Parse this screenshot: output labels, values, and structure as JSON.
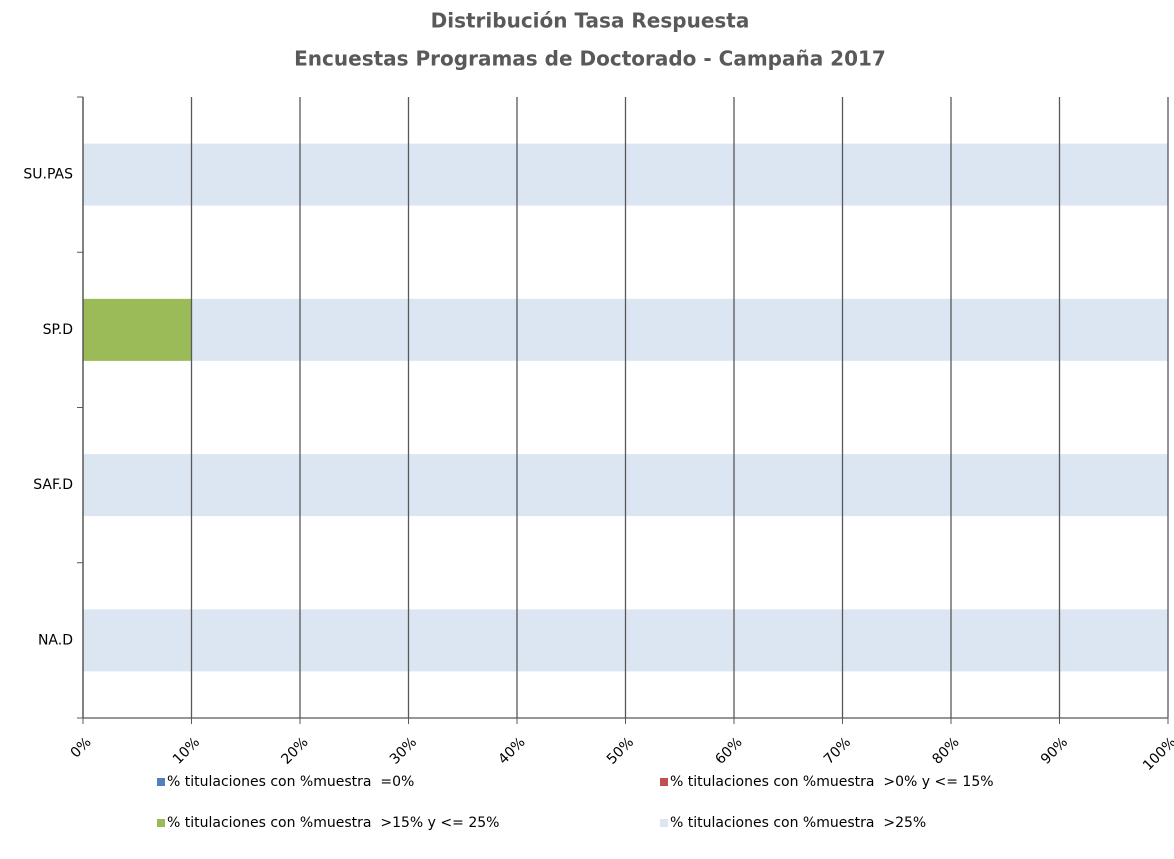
{
  "chart_data": {
    "type": "stacked_barh",
    "title": "Distribución Tasa Respuesta",
    "subtitle": "Encuestas Programas de Doctorado - Campaña 2017",
    "categories": [
      "SU.PAS",
      "SP.D",
      "SAF.D",
      "NA.D"
    ],
    "series": [
      {
        "name": "% titulaciones con %muestra  =0%",
        "color": "#4f81bd",
        "values": [
          0,
          0,
          0,
          0
        ]
      },
      {
        "name": "% titulaciones con %muestra  >0% y <= 15%",
        "color": "#c0504d",
        "values": [
          0,
          0,
          0,
          0
        ]
      },
      {
        "name": "% titulaciones con %muestra  >15% y <= 25%",
        "color": "#9bbb59",
        "values": [
          0,
          10,
          0,
          0
        ]
      },
      {
        "name": "% titulaciones con %muestra  >25%",
        "color": "#dce6f2",
        "values": [
          100,
          90,
          100,
          100
        ]
      }
    ],
    "xlim": [
      0,
      100
    ],
    "xticks": [
      {
        "value": 0,
        "label": "0%"
      },
      {
        "value": 10,
        "label": "10%"
      },
      {
        "value": 20,
        "label": "20%"
      },
      {
        "value": 30,
        "label": "30%"
      },
      {
        "value": 40,
        "label": "40%"
      },
      {
        "value": 50,
        "label": "50%"
      },
      {
        "value": 60,
        "label": "60%"
      },
      {
        "value": 70,
        "label": "70%"
      },
      {
        "value": 80,
        "label": "80%"
      },
      {
        "value": 90,
        "label": "90%"
      },
      {
        "value": 100,
        "label": "100%"
      }
    ],
    "grid": true,
    "legend": "bottom"
  }
}
